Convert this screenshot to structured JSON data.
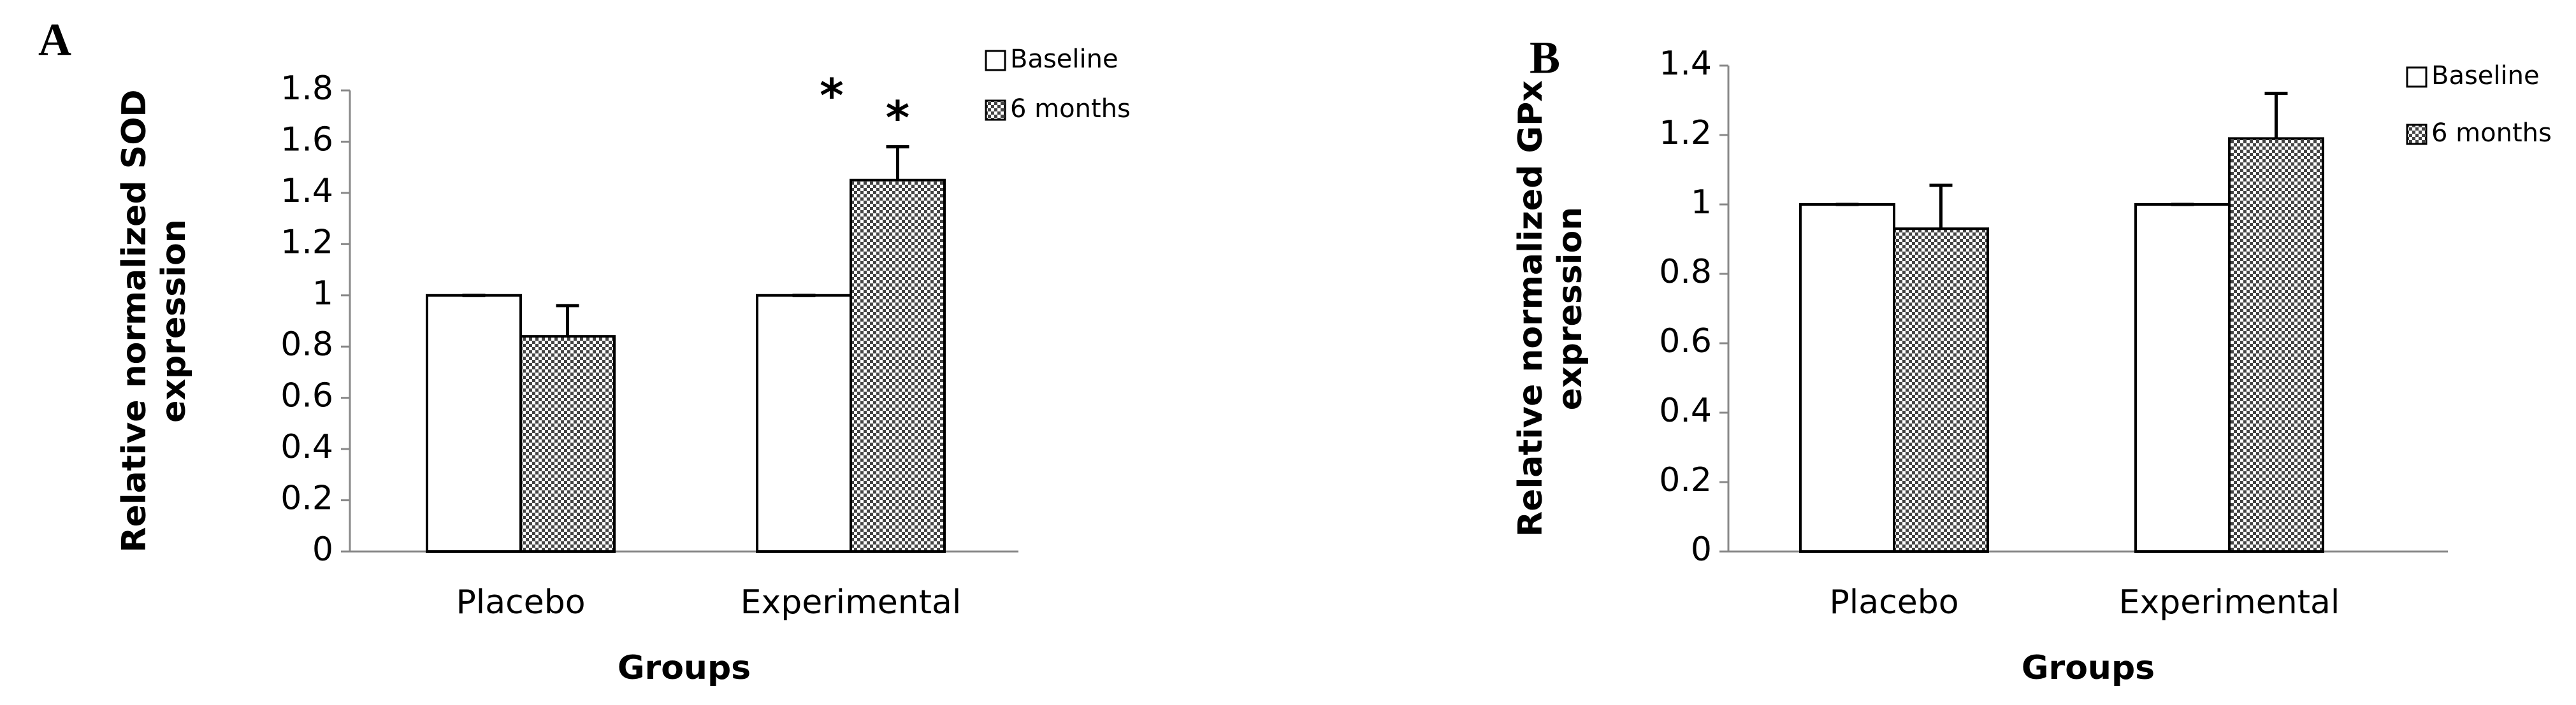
{
  "chart_data": [
    {
      "type": "bar",
      "panel_label": "A",
      "y_label": [
        "Relative normalized SOD",
        "expression"
      ],
      "x_label": "Groups",
      "categories": [
        "Placebo",
        "Experimental"
      ],
      "series": [
        {
          "name": "Baseline",
          "color": "#ffffff",
          "values": [
            1,
            1
          ],
          "errors": [
            0,
            0
          ]
        },
        {
          "name": "6 months",
          "color": "#555555",
          "pattern": "checker",
          "values": [
            0.84,
            1.45
          ],
          "errors": [
            0.12,
            0.13
          ]
        }
      ],
      "annotations": [
        {
          "text": "*"
        },
        {
          "text": "*"
        }
      ],
      "ylim": [
        0,
        1.8
      ],
      "yticks": [
        0,
        0.2,
        0.4,
        0.6,
        0.8,
        1,
        1.2,
        1.4,
        1.6,
        1.8
      ],
      "grid": false
    },
    {
      "type": "bar",
      "panel_label": "B",
      "y_label": [
        "Relative normalized GPx",
        "expression"
      ],
      "x_label": "Groups",
      "categories": [
        "Placebo",
        "Experimental"
      ],
      "series": [
        {
          "name": "Baseline",
          "color": "#ffffff",
          "values": [
            1,
            1
          ],
          "errors": [
            0,
            0
          ]
        },
        {
          "name": "6 months",
          "color": "#555555",
          "pattern": "checker",
          "values": [
            0.93,
            1.19
          ],
          "errors": [
            0.125,
            0.13
          ]
        }
      ],
      "ylim": [
        0,
        1.4
      ],
      "yticks": [
        0,
        0.2,
        0.4,
        0.6,
        0.8,
        1,
        1.2,
        1.4
      ],
      "grid": false
    }
  ]
}
